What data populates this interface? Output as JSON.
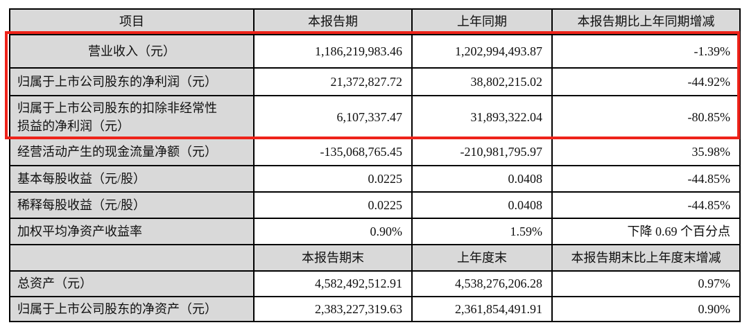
{
  "table": {
    "header_period": {
      "item": "项目",
      "current": "本报告期",
      "prior": "上年同期",
      "change": "本报告期比上年同期增减"
    },
    "rows_period": [
      {
        "label": "营业收入（元）",
        "current": "1,186,219,983.46",
        "prior": "1,202,994,493.87",
        "change": "-1.39%"
      },
      {
        "label": "归属于上市公司股东的净利润（元）",
        "current": "21,372,827.72",
        "prior": "38,802,215.02",
        "change": "-44.92%"
      },
      {
        "label": "归属于上市公司股东的扣除非经常性损益的净利润（元）",
        "current": "6,107,337.47",
        "prior": "31,893,322.04",
        "change": "-80.85%"
      },
      {
        "label": "经营活动产生的现金流量净额（元）",
        "current": "-135,068,765.45",
        "prior": "-210,981,795.97",
        "change": "35.98%"
      },
      {
        "label": "基本每股收益（元/股）",
        "current": "0.0225",
        "prior": "0.0408",
        "change": "-44.85%"
      },
      {
        "label": "稀释每股收益（元/股）",
        "current": "0.0225",
        "prior": "0.0408",
        "change": "-44.85%"
      },
      {
        "label": "加权平均净资产收益率",
        "current": "0.90%",
        "prior": "1.59%",
        "change": "下降 0.69 个百分点"
      }
    ],
    "header_period_end": {
      "item": "",
      "current": "本报告期末",
      "prior": "上年度末",
      "change": "本报告期末比上年度末增减"
    },
    "rows_period_end": [
      {
        "label": "总资产（元）",
        "current": "4,582,492,512.91",
        "prior": "4,538,276,206.28",
        "change": "0.97%"
      },
      {
        "label": "归属于上市公司股东的净资产（元）",
        "current": "2,383,227,319.63",
        "prior": "2,361,854,491.91",
        "change": "0.90%"
      }
    ],
    "colors": {
      "header_bg": "#d9d9d9",
      "border": "#000000",
      "highlight": "#ee231a"
    }
  }
}
